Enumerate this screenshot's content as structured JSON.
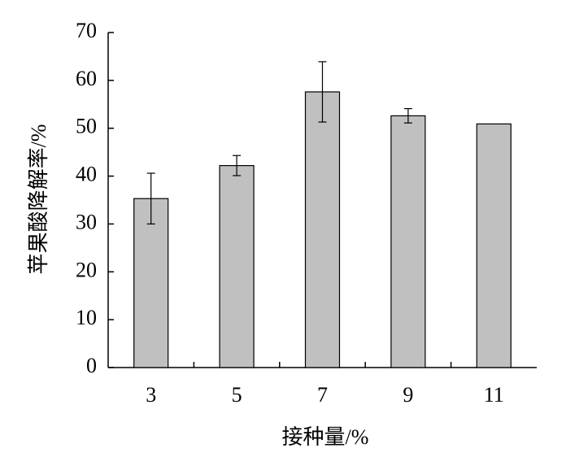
{
  "chart_data": {
    "type": "bar",
    "x_label": "接种量/%",
    "y_label": "苹果酸降解率/%",
    "categories": [
      "3",
      "5",
      "7",
      "9",
      "11"
    ],
    "values": [
      35.3,
      42.2,
      57.6,
      52.6,
      50.9
    ],
    "errors": [
      5.3,
      2.1,
      6.3,
      1.5,
      null
    ],
    "color": "#c0c0c0",
    "ylim": [
      0,
      70
    ],
    "yticks": [
      0,
      10,
      20,
      30,
      40,
      50,
      60,
      70
    ]
  }
}
